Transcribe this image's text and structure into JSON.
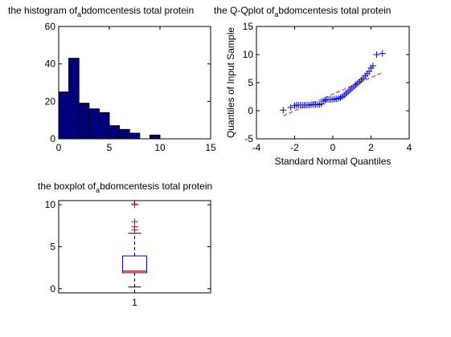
{
  "figure": {
    "background": "#ffffff"
  },
  "chart_data": [
    {
      "type": "bar",
      "title_parts": [
        "the histogram of",
        "a",
        "bdomcentesis total protein"
      ],
      "bin_edges": [
        0,
        1,
        2,
        3,
        4,
        5,
        6,
        7,
        8,
        9,
        10
      ],
      "values": [
        25,
        43,
        19,
        16,
        14,
        7,
        5,
        3,
        0,
        2
      ],
      "xlim": [
        0,
        15
      ],
      "ylim": [
        0,
        60
      ],
      "xticks": [
        0,
        5,
        10,
        15
      ],
      "yticks": [
        0,
        20,
        40,
        60
      ],
      "bar_color": "#00007f",
      "edge_color": "#000000"
    },
    {
      "type": "scatter",
      "title_parts": [
        "the Q-Qplot of",
        "a",
        "bdomcentesis total protein"
      ],
      "xlabel": "Standard Normal Quantiles",
      "ylabel": "Quantiles of Input Sample",
      "xlim": [
        -4,
        4
      ],
      "ylim": [
        -5,
        15
      ],
      "xticks": [
        -4,
        -2,
        0,
        2,
        4
      ],
      "yticks": [
        -5,
        0,
        5,
        10,
        15
      ],
      "marker": "+",
      "marker_color": "#0000ff",
      "reference_line": {
        "x": [
          -2.6,
          2.6
        ],
        "y": [
          -0.9,
          6.8
        ],
        "color": "#ff0000",
        "style": "dashed"
      },
      "x": [
        -2.6,
        -2.2,
        -2.0,
        -1.9,
        -1.8,
        -1.7,
        -1.6,
        -1.5,
        -1.4,
        -1.3,
        -1.2,
        -1.1,
        -1.0,
        -0.9,
        -0.8,
        -0.7,
        -0.6,
        -0.5,
        -0.4,
        -0.3,
        -0.2,
        -0.1,
        0.0,
        0.1,
        0.2,
        0.3,
        0.4,
        0.5,
        0.6,
        0.7,
        0.8,
        0.9,
        1.0,
        1.1,
        1.2,
        1.3,
        1.4,
        1.5,
        1.6,
        1.7,
        1.8,
        1.9,
        2.0,
        2.1,
        2.3,
        2.6
      ],
      "y": [
        0.1,
        0.6,
        0.9,
        1.0,
        1.0,
        1.0,
        1.0,
        1.0,
        1.0,
        1.0,
        1.0,
        1.1,
        1.1,
        1.1,
        1.1,
        1.1,
        1.2,
        1.7,
        1.9,
        2.0,
        2.0,
        2.0,
        2.0,
        2.1,
        2.1,
        2.2,
        2.3,
        2.5,
        2.8,
        3.1,
        3.4,
        3.7,
        4.0,
        4.3,
        4.6,
        4.9,
        5.2,
        5.5,
        5.8,
        6.2,
        6.6,
        7.0,
        7.6,
        8.0,
        10.0,
        10.2
      ]
    },
    {
      "type": "boxplot",
      "title_parts": [
        "the boxplot of",
        "a",
        "bdomcentesis total protein"
      ],
      "categories": [
        "1"
      ],
      "ylim": [
        -0.5,
        10.5
      ],
      "yticks": [
        0,
        5,
        10
      ],
      "whisker_low": 0.2,
      "q1": 1.9,
      "median": 2.1,
      "q3": 3.9,
      "whisker_high": 6.6,
      "outliers": [
        7.0,
        7.4,
        8.0,
        10.0,
        10.1
      ],
      "box_color": "#0000ff",
      "median_color": "#ff0000",
      "outlier_color": "#ff0000",
      "whisker_color": "#000000"
    }
  ]
}
